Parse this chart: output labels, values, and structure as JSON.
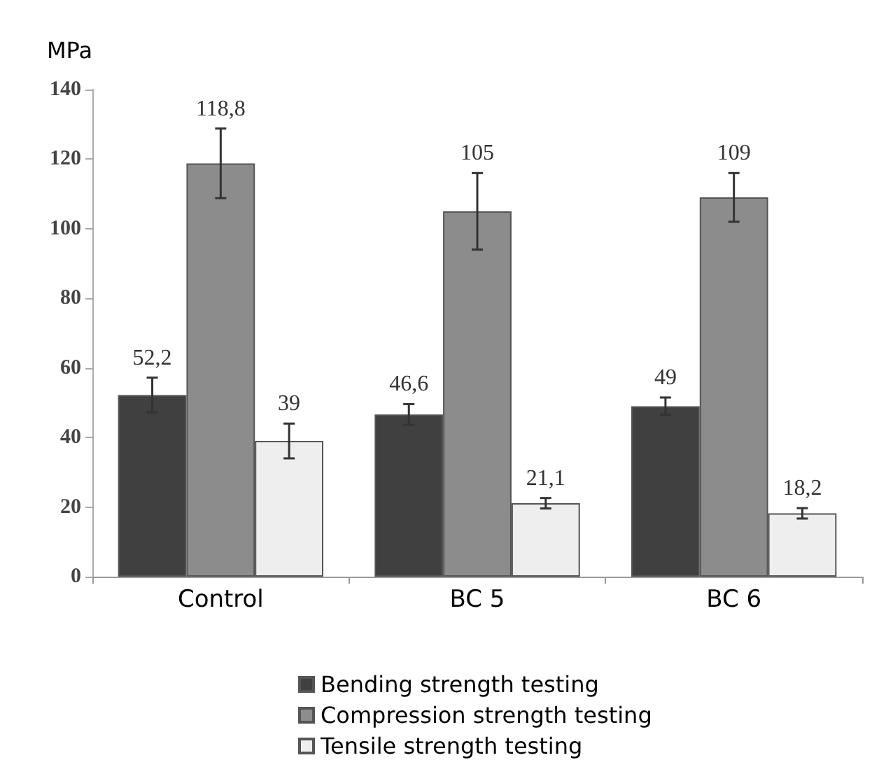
{
  "chart_data": {
    "type": "bar",
    "ylabel": "MPa",
    "categories": [
      "Control",
      "BC 5",
      "BC 6"
    ],
    "series": [
      {
        "name": "Bending strength testing",
        "color": "#404040",
        "values": [
          52.2,
          46.6,
          49
        ],
        "errors": [
          5,
          3,
          2.5
        ],
        "value_labels": [
          "52,2",
          "46,6",
          "49"
        ]
      },
      {
        "name": "Compression strength testing",
        "color": "#8c8c8c",
        "values": [
          118.8,
          105,
          109
        ],
        "errors": [
          10,
          11,
          7
        ],
        "value_labels": [
          "118,8",
          "105",
          "109"
        ]
      },
      {
        "name": "Tensile strength testing",
        "color": "#eeeeee",
        "values": [
          39,
          21.1,
          18.2
        ],
        "errors": [
          5,
          1.5,
          1.5
        ],
        "value_labels": [
          "39",
          "21,1",
          "18,2"
        ]
      }
    ],
    "ylim": [
      0,
      140
    ],
    "yticks": [
      0,
      20,
      40,
      60,
      80,
      100,
      120,
      140
    ],
    "grid": false,
    "legend": "bottom"
  }
}
